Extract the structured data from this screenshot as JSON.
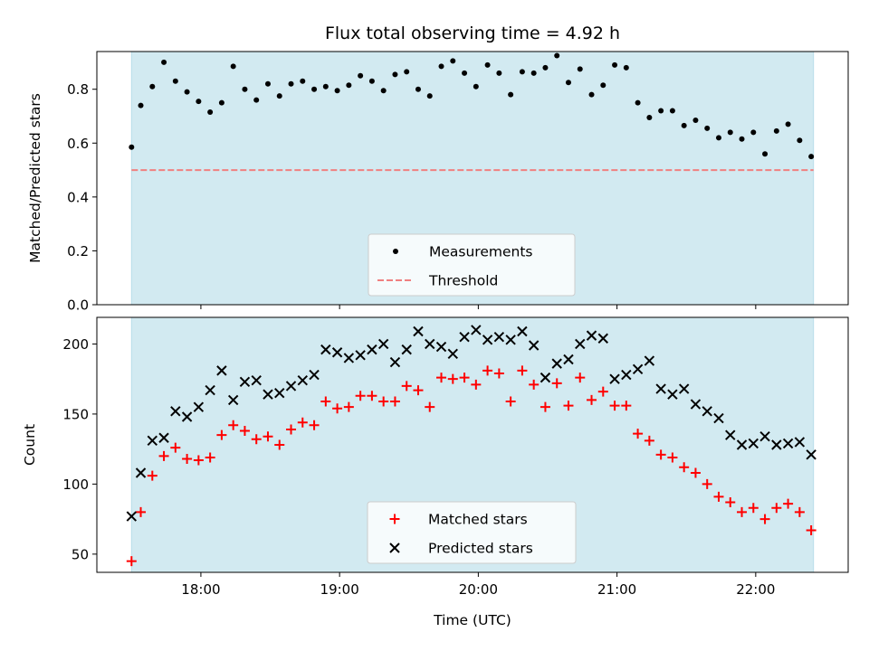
{
  "chart_data": [
    {
      "type": "scatter",
      "title": "Flux total observing time = 4.92 h",
      "xlabel": "",
      "ylabel": "Matched/Predicted stars",
      "ylim": [
        0,
        0.94
      ],
      "yticks": [
        "0.0",
        "0.2",
        "0.4",
        "0.6",
        "0.8"
      ],
      "ytick_values": [
        0,
        0.2,
        0.4,
        0.6,
        0.8
      ],
      "shade_span": [
        "17:30",
        "22:25"
      ],
      "shade_color": "#add8e6",
      "grid": false,
      "legend": "lower-center",
      "series": [
        {
          "name": "Measurements",
          "marker": "dot",
          "color": "#000000",
          "x": [
            "17:30",
            "17:34",
            "17:39",
            "17:44",
            "17:49",
            "17:54",
            "17:59",
            "18:04",
            "18:09",
            "18:14",
            "18:19",
            "18:24",
            "18:29",
            "18:34",
            "18:39",
            "18:44",
            "18:49",
            "18:54",
            "18:59",
            "19:04",
            "19:09",
            "19:14",
            "19:19",
            "19:24",
            "19:29",
            "19:34",
            "19:39",
            "19:44",
            "19:49",
            "19:54",
            "19:59",
            "20:04",
            "20:09",
            "20:14",
            "20:19",
            "20:24",
            "20:29",
            "20:34",
            "20:39",
            "20:44",
            "20:49",
            "20:54",
            "20:59",
            "21:04",
            "21:09",
            "21:14",
            "21:19",
            "21:24",
            "21:29",
            "21:34",
            "21:39",
            "21:44",
            "21:49",
            "21:54",
            "21:59",
            "22:04",
            "22:09",
            "22:14",
            "22:19",
            "22:24"
          ],
          "y": [
            0.585,
            0.74,
            0.81,
            0.9,
            0.83,
            0.79,
            0.755,
            0.715,
            0.75,
            0.885,
            0.8,
            0.76,
            0.82,
            0.775,
            0.82,
            0.83,
            0.8,
            0.81,
            0.795,
            0.815,
            0.85,
            0.83,
            0.795,
            0.855,
            0.865,
            0.8,
            0.775,
            0.885,
            0.905,
            0.86,
            0.81,
            0.89,
            0.86,
            0.78,
            0.865,
            0.86,
            0.88,
            0.925,
            0.825,
            0.875,
            0.78,
            0.815,
            0.89,
            0.88,
            0.75,
            0.695,
            0.72,
            0.72,
            0.665,
            0.685,
            0.655,
            0.62,
            0.64,
            0.615,
            0.64,
            0.56,
            0.645,
            0.67,
            0.61,
            0.55
          ]
        },
        {
          "name": "Threshold",
          "style": "dashed",
          "color": "#f08080",
          "x": [
            "17:30",
            "22:25"
          ],
          "y": [
            0.5,
            0.5
          ]
        }
      ]
    },
    {
      "type": "scatter",
      "xlabel": "Time (UTC)",
      "ylabel": "Count",
      "ylim": [
        37,
        219
      ],
      "yticks": [
        "50",
        "100",
        "150",
        "200"
      ],
      "ytick_values": [
        50,
        100,
        150,
        200
      ],
      "xticks": [
        "18:00",
        "19:00",
        "20:00",
        "21:00",
        "22:00"
      ],
      "xlim": [
        "17:15",
        "22:40"
      ],
      "shade_span": [
        "17:30",
        "22:25"
      ],
      "shade_color": "#add8e6",
      "grid": false,
      "legend": "lower-center",
      "series": [
        {
          "name": "Matched stars",
          "marker": "plus",
          "color": "#ff0000",
          "x": [
            "17:30",
            "17:34",
            "17:39",
            "17:44",
            "17:49",
            "17:54",
            "17:59",
            "18:04",
            "18:09",
            "18:14",
            "18:19",
            "18:24",
            "18:29",
            "18:34",
            "18:39",
            "18:44",
            "18:49",
            "18:54",
            "18:59",
            "19:04",
            "19:09",
            "19:14",
            "19:19",
            "19:24",
            "19:29",
            "19:34",
            "19:39",
            "19:44",
            "19:49",
            "19:54",
            "19:59",
            "20:04",
            "20:09",
            "20:14",
            "20:19",
            "20:24",
            "20:29",
            "20:34",
            "20:39",
            "20:44",
            "20:49",
            "20:54",
            "20:59",
            "21:04",
            "21:09",
            "21:14",
            "21:19",
            "21:24",
            "21:29",
            "21:34",
            "21:39",
            "21:44",
            "21:49",
            "21:54",
            "21:59",
            "22:04",
            "22:09",
            "22:14",
            "22:19",
            "22:24"
          ],
          "y": [
            45,
            80,
            106,
            120,
            126,
            118,
            117,
            119,
            135,
            142,
            138,
            132,
            134,
            128,
            139,
            144,
            142,
            159,
            154,
            155,
            163,
            163,
            159,
            159,
            170,
            167,
            155,
            176,
            175,
            176,
            171,
            181,
            179,
            159,
            181,
            171,
            155,
            172,
            156,
            176,
            160,
            166,
            156,
            156,
            136,
            131,
            121,
            119,
            112,
            108,
            100,
            91,
            87,
            80,
            83,
            75,
            83,
            86,
            80,
            67
          ]
        },
        {
          "name": "Predicted stars",
          "marker": "x",
          "color": "#000000",
          "x": [
            "17:30",
            "17:34",
            "17:39",
            "17:44",
            "17:49",
            "17:54",
            "17:59",
            "18:04",
            "18:09",
            "18:14",
            "18:19",
            "18:24",
            "18:29",
            "18:34",
            "18:39",
            "18:44",
            "18:49",
            "18:54",
            "18:59",
            "19:04",
            "19:09",
            "19:14",
            "19:19",
            "19:24",
            "19:29",
            "19:34",
            "19:39",
            "19:44",
            "19:49",
            "19:54",
            "19:59",
            "20:04",
            "20:09",
            "20:14",
            "20:19",
            "20:24",
            "20:29",
            "20:34",
            "20:39",
            "20:44",
            "20:49",
            "20:54",
            "20:59",
            "21:04",
            "21:09",
            "21:14",
            "21:19",
            "21:24",
            "21:29",
            "21:34",
            "21:39",
            "21:44",
            "21:49",
            "21:54",
            "21:59",
            "22:04",
            "22:09",
            "22:14",
            "22:19",
            "22:24"
          ],
          "y": [
            77,
            108,
            131,
            133,
            152,
            148,
            155,
            167,
            181,
            160,
            173,
            174,
            164,
            165,
            170,
            174,
            178,
            196,
            194,
            190,
            192,
            196,
            200,
            187,
            196,
            209,
            200,
            198,
            193,
            205,
            210,
            203,
            205,
            203,
            209,
            199,
            176,
            186,
            189,
            200,
            206,
            204,
            175,
            178,
            182,
            188,
            168,
            164,
            168,
            157,
            152,
            147,
            135,
            128,
            129,
            134,
            128,
            129,
            130,
            121
          ]
        }
      ]
    }
  ]
}
